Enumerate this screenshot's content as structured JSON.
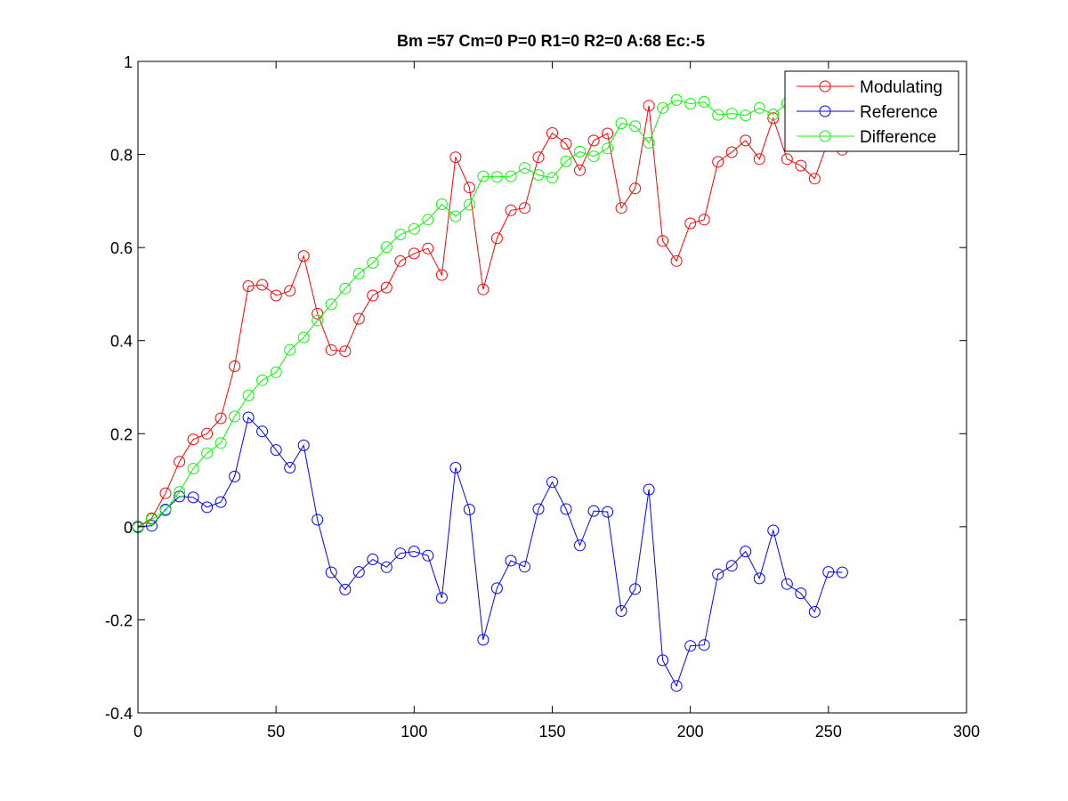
{
  "chart_data": {
    "type": "line",
    "title": "Bm =57  Cm=0  P=0  R1=0  R2=0  A:68  Ec:-5",
    "xlabel": "",
    "ylabel": "",
    "xlim": [
      0,
      300
    ],
    "ylim": [
      -0.4,
      1
    ],
    "xticks": [
      0,
      50,
      100,
      150,
      200,
      250,
      300
    ],
    "yticks": [
      -0.4,
      -0.2,
      0,
      0.2,
      0.4,
      0.6,
      0.8,
      1
    ],
    "xtick_labels": [
      "0",
      "50",
      "100",
      "150",
      "200",
      "250",
      "300"
    ],
    "ytick_labels": [
      "-0.4",
      "-0.2",
      "0",
      "0.2",
      "0.4",
      "0.6",
      "0.8",
      "1"
    ],
    "grid": false,
    "legend_position": "top-right",
    "marker": "circle",
    "x": [
      0,
      5,
      10,
      15,
      20,
      25,
      30,
      35,
      40,
      45,
      50,
      55,
      60,
      65,
      70,
      75,
      80,
      85,
      90,
      95,
      100,
      105,
      110,
      115,
      120,
      125,
      130,
      135,
      140,
      145,
      150,
      155,
      160,
      165,
      170,
      175,
      180,
      185,
      190,
      195,
      200,
      205,
      210,
      215,
      220,
      225,
      230,
      235,
      240,
      245,
      250,
      255
    ],
    "series": [
      {
        "name": "Modulating",
        "color": "#ff0000",
        "values": [
          0,
          0.018,
          0.072,
          0.14,
          0.188,
          0.2,
          0.233,
          0.345,
          0.517,
          0.52,
          0.497,
          0.507,
          0.582,
          0.458,
          0.38,
          0.377,
          0.447,
          0.497,
          0.514,
          0.571,
          0.587,
          0.598,
          0.541,
          0.794,
          0.729,
          0.51,
          0.62,
          0.68,
          0.685,
          0.794,
          0.846,
          0.823,
          0.766,
          0.83,
          0.845,
          0.685,
          0.727,
          0.905,
          0.614,
          0.571,
          0.652,
          0.66,
          0.784,
          0.805,
          0.83,
          0.79,
          0.878,
          0.79,
          0.776,
          0.748,
          0.83,
          0.81
        ]
      },
      {
        "name": "Reference",
        "color": "#0000ff",
        "values": [
          0,
          0.002,
          0.037,
          0.065,
          0.063,
          0.042,
          0.053,
          0.108,
          0.235,
          0.205,
          0.165,
          0.127,
          0.175,
          0.015,
          -0.098,
          -0.135,
          -0.097,
          -0.07,
          -0.087,
          -0.057,
          -0.053,
          -0.062,
          -0.153,
          0.127,
          0.037,
          -0.243,
          -0.132,
          -0.073,
          -0.086,
          0.038,
          0.096,
          0.038,
          -0.04,
          0.034,
          0.032,
          -0.181,
          -0.134,
          0.08,
          -0.287,
          -0.342,
          -0.256,
          -0.254,
          -0.102,
          -0.084,
          -0.053,
          -0.111,
          -0.008,
          -0.123,
          -0.143,
          -0.183,
          -0.097,
          -0.098
        ]
      },
      {
        "name": "Difference",
        "color": "#00ff00",
        "values": [
          -0.002,
          0.016,
          0.035,
          0.075,
          0.125,
          0.158,
          0.18,
          0.237,
          0.282,
          0.315,
          0.332,
          0.38,
          0.407,
          0.443,
          0.478,
          0.512,
          0.544,
          0.567,
          0.601,
          0.628,
          0.64,
          0.66,
          0.693,
          0.667,
          0.692,
          0.753,
          0.752,
          0.753,
          0.771,
          0.756,
          0.75,
          0.785,
          0.806,
          0.796,
          0.813,
          0.867,
          0.861,
          0.825,
          0.9,
          0.917,
          0.909,
          0.913,
          0.885,
          0.888,
          0.884,
          0.9,
          0.886,
          0.91,
          0.92,
          0.93,
          0.93,
          0.93
        ]
      }
    ]
  }
}
